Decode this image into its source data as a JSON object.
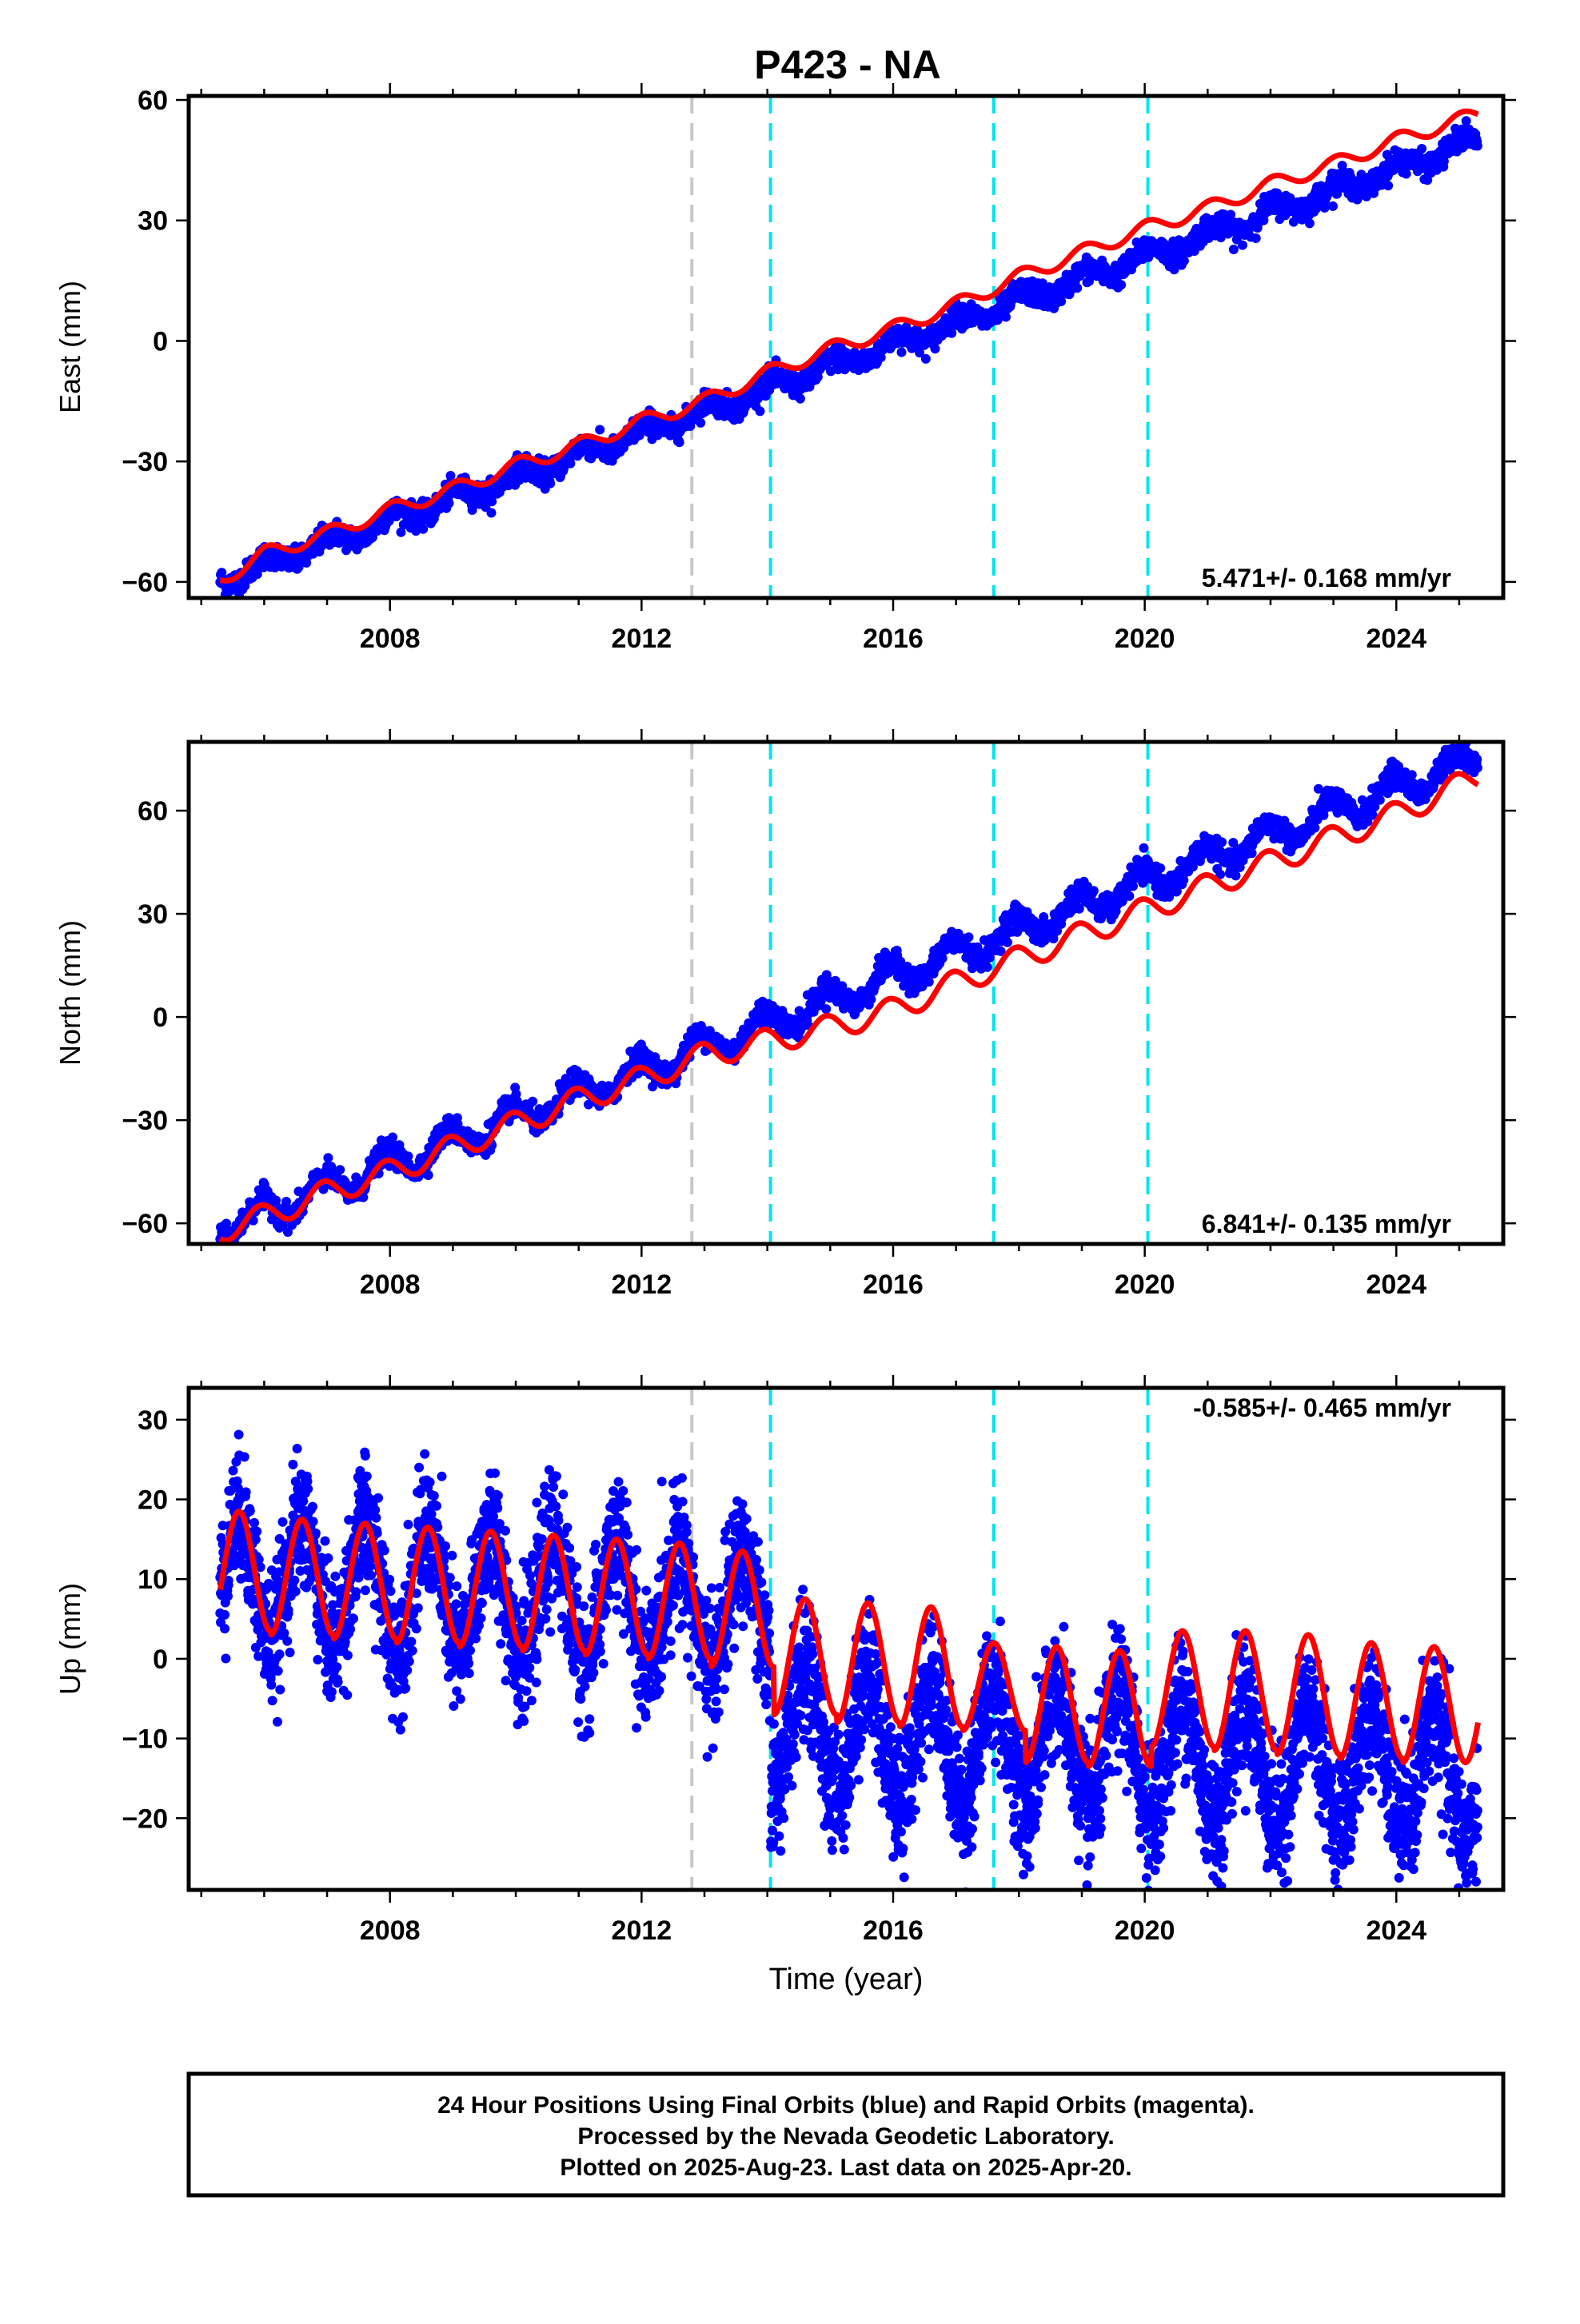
{
  "title": "P423 - NA",
  "footer": {
    "line1": "24 Hour Positions Using Final Orbits (blue) and Rapid Orbits (magenta).",
    "line2": "Processed by the Nevada Geodetic Laboratory.",
    "line3": "Plotted on 2025-Aug-23. Last data on 2025-Apr-20."
  },
  "colors": {
    "data_points": "#0000ff",
    "model_fit": "#ff0000",
    "antenna_change_line": "#00e5ee",
    "equipment_change_line": "#c8c8c8"
  },
  "chart_data": [
    {
      "type": "scatter",
      "panel": "east",
      "ylabel": "East (mm)",
      "xlabel": "",
      "xlim": [
        2004.8,
        2025.7
      ],
      "ylim": [
        -64,
        61
      ],
      "xticks": [
        2008,
        2012,
        2016,
        2020,
        2024
      ],
      "yticks": [
        -60,
        -30,
        0,
        30,
        60
      ],
      "rate_label": "5.471+/- 0.168 mm/yr",
      "rate_label_position": "bottom-right",
      "series": [
        {
          "role": "daily positions",
          "model": {
            "slope_mm_per_yr": 5.471,
            "value_at_2005_3": -59.5,
            "annual_amplitude": 2.0,
            "annual_phase": 1.3,
            "scatter_sd": 1.5
          },
          "value_range": [
            -63,
            58
          ]
        },
        {
          "role": "model fit",
          "x": [
            2005.3,
            2006.0,
            2007.0,
            2008.0,
            2009.0,
            2010.0,
            2011.0,
            2012.0,
            2013.0,
            2014.0,
            2015.0,
            2016.0,
            2017.0,
            2018.0,
            2019.0,
            2020.0,
            2021.0,
            2022.0,
            2023.0,
            2024.0,
            2025.3
          ],
          "y": [
            -59.5,
            -53,
            -48,
            -42,
            -37,
            -31,
            -26,
            -20,
            -15,
            -8,
            -2,
            3,
            9,
            16,
            22,
            28,
            33,
            39,
            44,
            50,
            56.5
          ]
        }
      ],
      "vertical_lines": [
        {
          "x": 2012.8,
          "style": "gray dashed"
        },
        {
          "x": 2014.05,
          "style": "cyan dashed"
        },
        {
          "x": 2017.6,
          "style": "cyan dashed"
        },
        {
          "x": 2020.05,
          "style": "cyan dashed"
        }
      ]
    },
    {
      "type": "scatter",
      "panel": "north",
      "ylabel": "North (mm)",
      "xlabel": "",
      "xlim": [
        2004.8,
        2025.7
      ],
      "ylim": [
        -66,
        80
      ],
      "xticks": [
        2008,
        2012,
        2016,
        2020,
        2024
      ],
      "yticks": [
        -60,
        -30,
        0,
        30,
        60
      ],
      "rate_label": "6.841+/- 0.135 mm/yr",
      "rate_label_position": "bottom-right",
      "series": [
        {
          "role": "daily positions",
          "model": {
            "slope_mm_per_yr": 6.841,
            "value_at_2005_3": -61.5,
            "annual_amplitude": 4.0,
            "annual_phase": 2.0,
            "scatter_sd": 1.8
          },
          "value_range": [
            -64,
            78
          ]
        },
        {
          "role": "model fit",
          "x": [
            2005.3,
            2006.0,
            2007.0,
            2008.0,
            2009.0,
            2010.0,
            2011.0,
            2012.0,
            2013.0,
            2014.0,
            2015.0,
            2016.0,
            2017.0,
            2018.0,
            2019.0,
            2020.0,
            2021.0,
            2022.0,
            2023.0,
            2024.0,
            2025.3
          ],
          "y": [
            -62,
            -58,
            -51,
            -45,
            -38,
            -31,
            -24,
            -18,
            -11,
            -7,
            -3,
            2,
            10,
            17,
            24,
            31,
            38,
            45,
            52,
            59,
            70
          ]
        }
      ],
      "vertical_lines": [
        {
          "x": 2012.8,
          "style": "gray dashed"
        },
        {
          "x": 2014.05,
          "style": "cyan dashed"
        },
        {
          "x": 2017.6,
          "style": "cyan dashed"
        },
        {
          "x": 2020.05,
          "style": "cyan dashed"
        }
      ]
    },
    {
      "type": "scatter",
      "panel": "up",
      "ylabel": "Up (mm)",
      "xlabel": "Time (year)",
      "xlim": [
        2004.8,
        2025.7
      ],
      "ylim": [
        -29,
        34
      ],
      "xticks": [
        2008,
        2012,
        2016,
        2020,
        2024
      ],
      "yticks": [
        -20,
        -10,
        0,
        10,
        20,
        30
      ],
      "rate_label": "-0.585+/- 0.465 mm/yr",
      "rate_label_position": "top-right",
      "series": [
        {
          "role": "daily positions",
          "model": {
            "before_2014_offset": 10.5,
            "after_2014_offset": -3.5,
            "slope_mm_per_yr": -0.585,
            "annual_amplitude": 7.5,
            "annual_phase": 1.0,
            "scatter_sd": 4.0
          },
          "value_range": [
            -28,
            32
          ]
        },
        {
          "role": "model fit",
          "peaks_x": [
            2005.6,
            2006.6,
            2007.6,
            2008.6,
            2009.6,
            2010.6,
            2011.6,
            2012.6,
            2013.6,
            2014.6,
            2015.6,
            2016.6,
            2017.6,
            2018.6,
            2019.6,
            2020.6,
            2021.6,
            2022.6,
            2023.6,
            2024.6
          ],
          "peaks_y": [
            18.5,
            17.5,
            17,
            16.5,
            16,
            15.5,
            15,
            14.5,
            13.5,
            7.5,
            7,
            6.5,
            2,
            1.5,
            1,
            3.5,
            3.5,
            3,
            2,
            1.5
          ],
          "troughs_y": [
            3.5,
            3,
            2.5,
            2,
            1.5,
            1,
            0.5,
            0,
            -1,
            -7,
            -8,
            -8.5,
            -9,
            -13,
            -13.5,
            -11,
            -11.5,
            -12,
            -12.5,
            -13
          ]
        }
      ],
      "vertical_lines": [
        {
          "x": 2012.8,
          "style": "gray dashed"
        },
        {
          "x": 2014.05,
          "style": "cyan dashed"
        },
        {
          "x": 2017.6,
          "style": "cyan dashed"
        },
        {
          "x": 2020.05,
          "style": "cyan dashed"
        }
      ]
    }
  ]
}
